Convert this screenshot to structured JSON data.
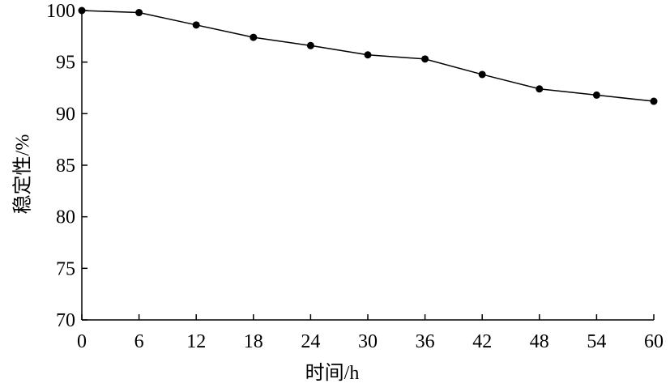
{
  "chart_data": {
    "type": "line",
    "xlabel": "时间/h",
    "ylabel": "稳定性/%",
    "x": [
      0,
      6,
      12,
      18,
      24,
      30,
      36,
      42,
      48,
      54,
      60
    ],
    "series": [
      {
        "color": "#000000",
        "values": [
          100,
          99.8,
          98.6,
          97.4,
          96.6,
          95.7,
          95.3,
          93.8,
          92.4,
          91.8,
          91.2
        ]
      }
    ],
    "xlim": [
      0,
      60
    ],
    "xticks": [
      0,
      6,
      12,
      18,
      24,
      30,
      36,
      42,
      48,
      54,
      60
    ],
    "ylim": [
      70,
      100
    ],
    "yticks": [
      70,
      75,
      80,
      85,
      90,
      95,
      100
    ]
  }
}
